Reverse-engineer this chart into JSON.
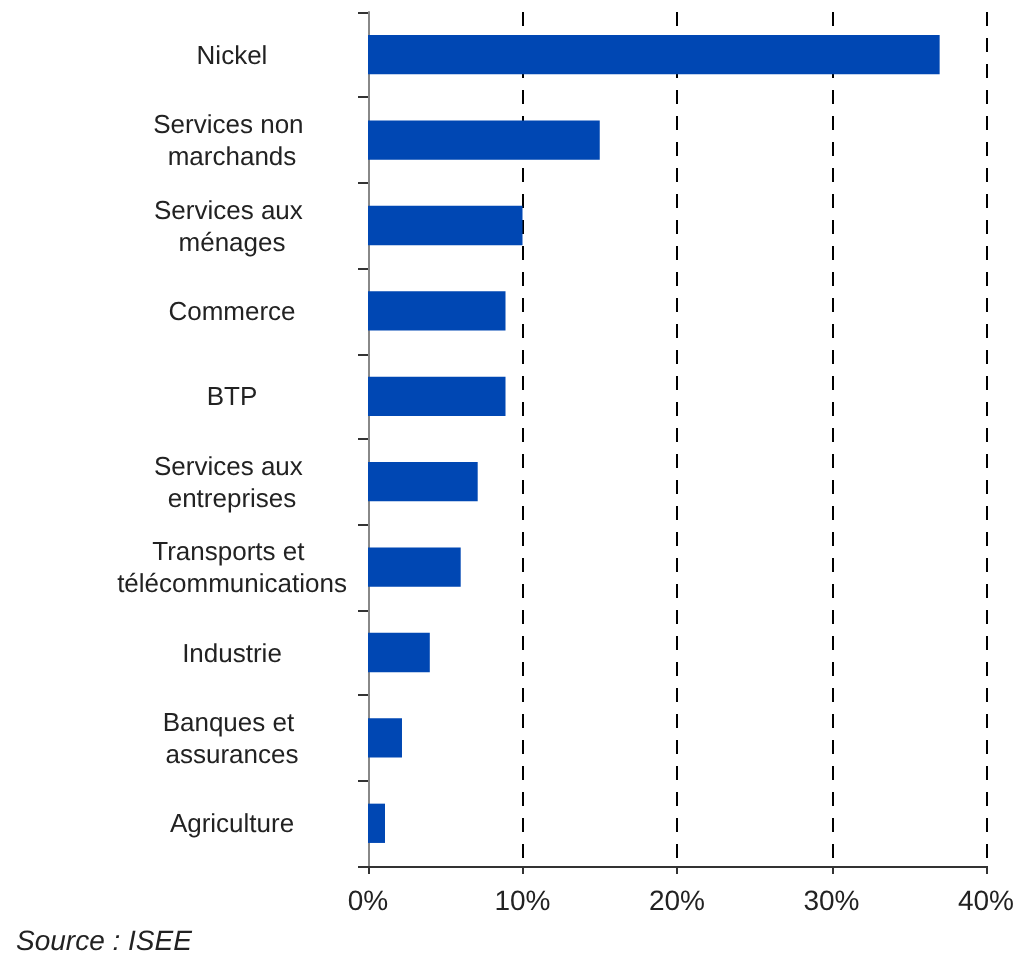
{
  "chart_data": {
    "type": "bar",
    "orientation": "horizontal",
    "categories": [
      "Nickel",
      "Services non marchands",
      "Services aux ménages",
      "Commerce",
      "BTP",
      "Services aux entreprises",
      "Transports et télécommunications",
      "Industrie",
      "Banques et assurances",
      "Agriculture"
    ],
    "values": [
      37,
      15,
      10,
      8.9,
      8.9,
      7.1,
      6,
      4,
      2.2,
      1.1
    ],
    "color": "#0047b3",
    "xlim": [
      0,
      40
    ],
    "xticks": [
      {
        "value": 0,
        "label": "0%"
      },
      {
        "value": 10,
        "label": "10%"
      },
      {
        "value": 20,
        "label": "20%"
      },
      {
        "value": 30,
        "label": "30%"
      },
      {
        "value": 40,
        "label": "40%"
      }
    ],
    "grid": "x",
    "annotations": [
      "Source : ISEE"
    ]
  }
}
